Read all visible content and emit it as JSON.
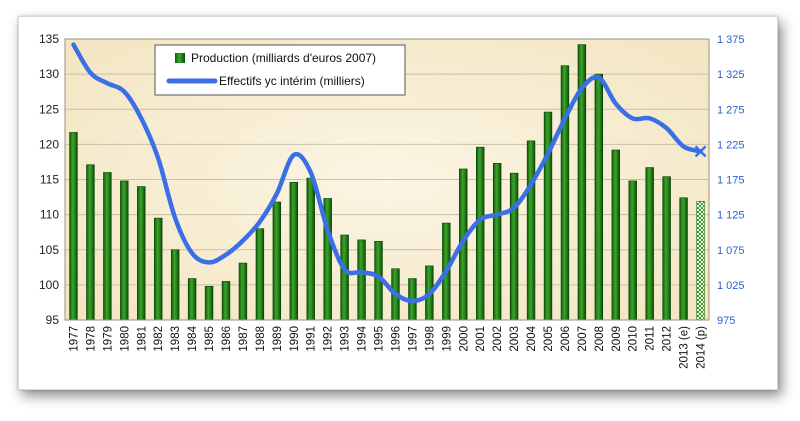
{
  "chart_data": {
    "type": "bar",
    "categories": [
      "1977",
      "1978",
      "1979",
      "1980",
      "1981",
      "1982",
      "1983",
      "1984",
      "1985",
      "1986",
      "1987",
      "1988",
      "1989",
      "1990",
      "1991",
      "1992",
      "1993",
      "1994",
      "1995",
      "1996",
      "1997",
      "1998",
      "1999",
      "2000",
      "2001",
      "2002",
      "2003",
      "2004",
      "2005",
      "2006",
      "2007",
      "2008",
      "2009",
      "2010",
      "2011",
      "2012",
      "2013 (e)",
      "2014 (p)"
    ],
    "series": [
      {
        "name": "Production (milliards d'euros 2007)",
        "type": "bar",
        "axis": "left",
        "color": "#1e7d12",
        "values": [
          121.7,
          117.1,
          116.0,
          114.8,
          114.0,
          109.5,
          105.0,
          100.9,
          99.8,
          100.5,
          103.1,
          108.0,
          111.8,
          114.6,
          115.2,
          112.3,
          107.1,
          106.4,
          106.2,
          102.3,
          100.9,
          102.7,
          108.8,
          116.5,
          119.6,
          117.3,
          115.9,
          120.5,
          124.6,
          131.2,
          134.2,
          130.0,
          119.2,
          114.8,
          116.7,
          115.4,
          112.4,
          111.9
        ],
        "last_bar_style": "hatched"
      },
      {
        "name": "Effectifs yc intérim (milliers)",
        "type": "line",
        "axis": "right",
        "color": "#3a6fe6",
        "values": [
          1367,
          1327,
          1312,
          1300,
          1262,
          1205,
          1120,
          1070,
          1057,
          1068,
          1088,
          1115,
          1155,
          1210,
          1185,
          1103,
          1047,
          1043,
          1037,
          1012,
          1002,
          1012,
          1045,
          1088,
          1118,
          1125,
          1135,
          1168,
          1212,
          1262,
          1305,
          1320,
          1283,
          1262,
          1262,
          1248,
          1222,
          1215
        ],
        "last_point_marker": "x"
      }
    ],
    "y_left": {
      "ylim": [
        95,
        135
      ],
      "ticks": [
        "95",
        "100",
        "105",
        "110",
        "115",
        "120",
        "125",
        "130",
        "135"
      ],
      "tick_values": [
        95,
        100,
        105,
        110,
        115,
        120,
        125,
        130,
        135
      ]
    },
    "y_right": {
      "ylim": [
        975,
        1375
      ],
      "ticks": [
        "975",
        "1 025",
        "1 075",
        "1 125",
        "1 175",
        "1 225",
        "1 275",
        "1 325",
        "1 375"
      ],
      "tick_values": [
        975,
        1025,
        1075,
        1125,
        1175,
        1225,
        1275,
        1325,
        1375
      ]
    },
    "grid": true,
    "legend_position": "top-left",
    "colors": {
      "plot_background": "#f7eed3",
      "grid": "#c8c0a8",
      "right_axis": "#2a5fd0"
    }
  }
}
